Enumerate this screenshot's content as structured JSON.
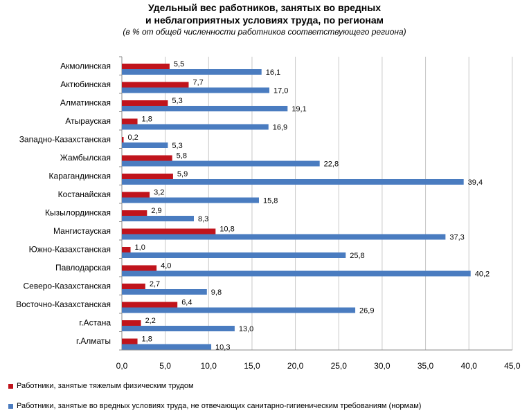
{
  "header": {
    "title_line1": "Удельный вес работников, занятых во вредных",
    "title_line2": "и неблагоприятных условиях труда, по регионам",
    "subtitle": "(в % от общей численности работников соответствующего региона)"
  },
  "colors": {
    "series1": "#c0141c",
    "series2": "#4a7cc0",
    "grid": "#c8c8c8",
    "axis": "#888888"
  },
  "chart_data": {
    "type": "bar",
    "orientation": "horizontal",
    "title": "Удельный вес работников, занятых во вредных и неблагоприятных условиях труда, по регионам",
    "subtitle": "(в % от общей численности работников соответствующего региона)",
    "categories": [
      "Акмолинская",
      "Актюбинская",
      "Алматинская",
      "Атырауская",
      "Западно-Казахстанская",
      "Жамбылская",
      "Карагандинская",
      "Костанайская",
      "Кызылординская",
      "Мангистауская",
      "Южно-Казахстанская",
      "Павлодарская",
      "Северо-Казахстанская",
      "Восточно-Казахстанская",
      "г.Астана",
      "г.Алматы"
    ],
    "series": [
      {
        "name": "Работники, занятые тяжелым физическим трудом",
        "values": [
          5.5,
          7.7,
          5.3,
          1.8,
          0.2,
          5.8,
          5.9,
          3.2,
          2.9,
          10.8,
          1.0,
          4.0,
          2.7,
          6.4,
          2.2,
          1.8
        ],
        "labels": [
          "5,5",
          "7,7",
          "5,3",
          "1,8",
          "0,2",
          "5,8",
          "5,9",
          "3,2",
          "2,9",
          "10,8",
          "1,0",
          "4,0",
          "2,7",
          "6,4",
          "2,2",
          "1,8"
        ]
      },
      {
        "name": "Работники, занятые во вредных условиях труда, не отвечающих санитарно-гигиеническим требованиям (нормам)",
        "values": [
          16.1,
          17.0,
          19.1,
          16.9,
          5.3,
          22.8,
          39.4,
          15.8,
          8.3,
          37.3,
          25.8,
          40.2,
          9.8,
          26.9,
          13.0,
          10.3
        ],
        "labels": [
          "16,1",
          "17,0",
          "19,1",
          "16,9",
          "5,3",
          "22,8",
          "39,4",
          "15,8",
          "8,3",
          "37,3",
          "25,8",
          "40,2",
          "9,8",
          "26,9",
          "13,0",
          "10,3"
        ]
      }
    ],
    "xlim": [
      0,
      45
    ],
    "xticks": [
      "0,0",
      "5,0",
      "10,0",
      "15,0",
      "20,0",
      "25,0",
      "30,0",
      "35,0",
      "40,0",
      "45,0"
    ],
    "grid": true,
    "legend_position": "bottom-left"
  }
}
